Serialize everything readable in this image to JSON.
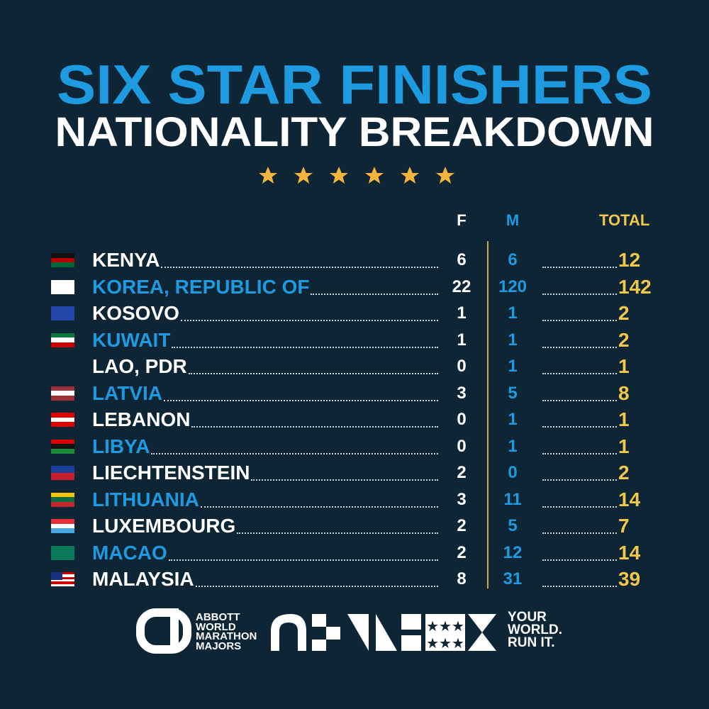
{
  "header": {
    "title": "SIX STAR FINISHERS",
    "subtitle": "NATIONALITY BREAKDOWN"
  },
  "table": {
    "columns": [
      "F",
      "M",
      "TOTAL"
    ],
    "rows": [
      [
        "KENYA",
        6,
        6,
        12
      ],
      [
        "KOREA, REPUBLIC OF",
        22,
        120,
        142
      ],
      [
        "KOSOVO",
        1,
        1,
        2
      ],
      [
        "KUWAIT",
        1,
        1,
        2
      ],
      [
        "LAO, PDR",
        0,
        1,
        1
      ],
      [
        "LATVIA",
        3,
        5,
        8
      ],
      [
        "LEBANON",
        0,
        1,
        1
      ],
      [
        "LIBYA",
        0,
        1,
        1
      ],
      [
        "LIECHTENSTEIN",
        2,
        0,
        2
      ],
      [
        "LITHUANIA",
        3,
        11,
        14
      ],
      [
        "LUXEMBOURG",
        2,
        5,
        7
      ],
      [
        "MACAO",
        2,
        12,
        14
      ],
      [
        "MALAYSIA",
        8,
        31,
        39
      ]
    ]
  },
  "footer": {
    "brand": [
      "ABBOTT",
      "WORLD",
      "MARATHON",
      "MAJORS"
    ],
    "slogan": [
      "YOUR",
      "WORLD.",
      "RUN IT."
    ]
  }
}
